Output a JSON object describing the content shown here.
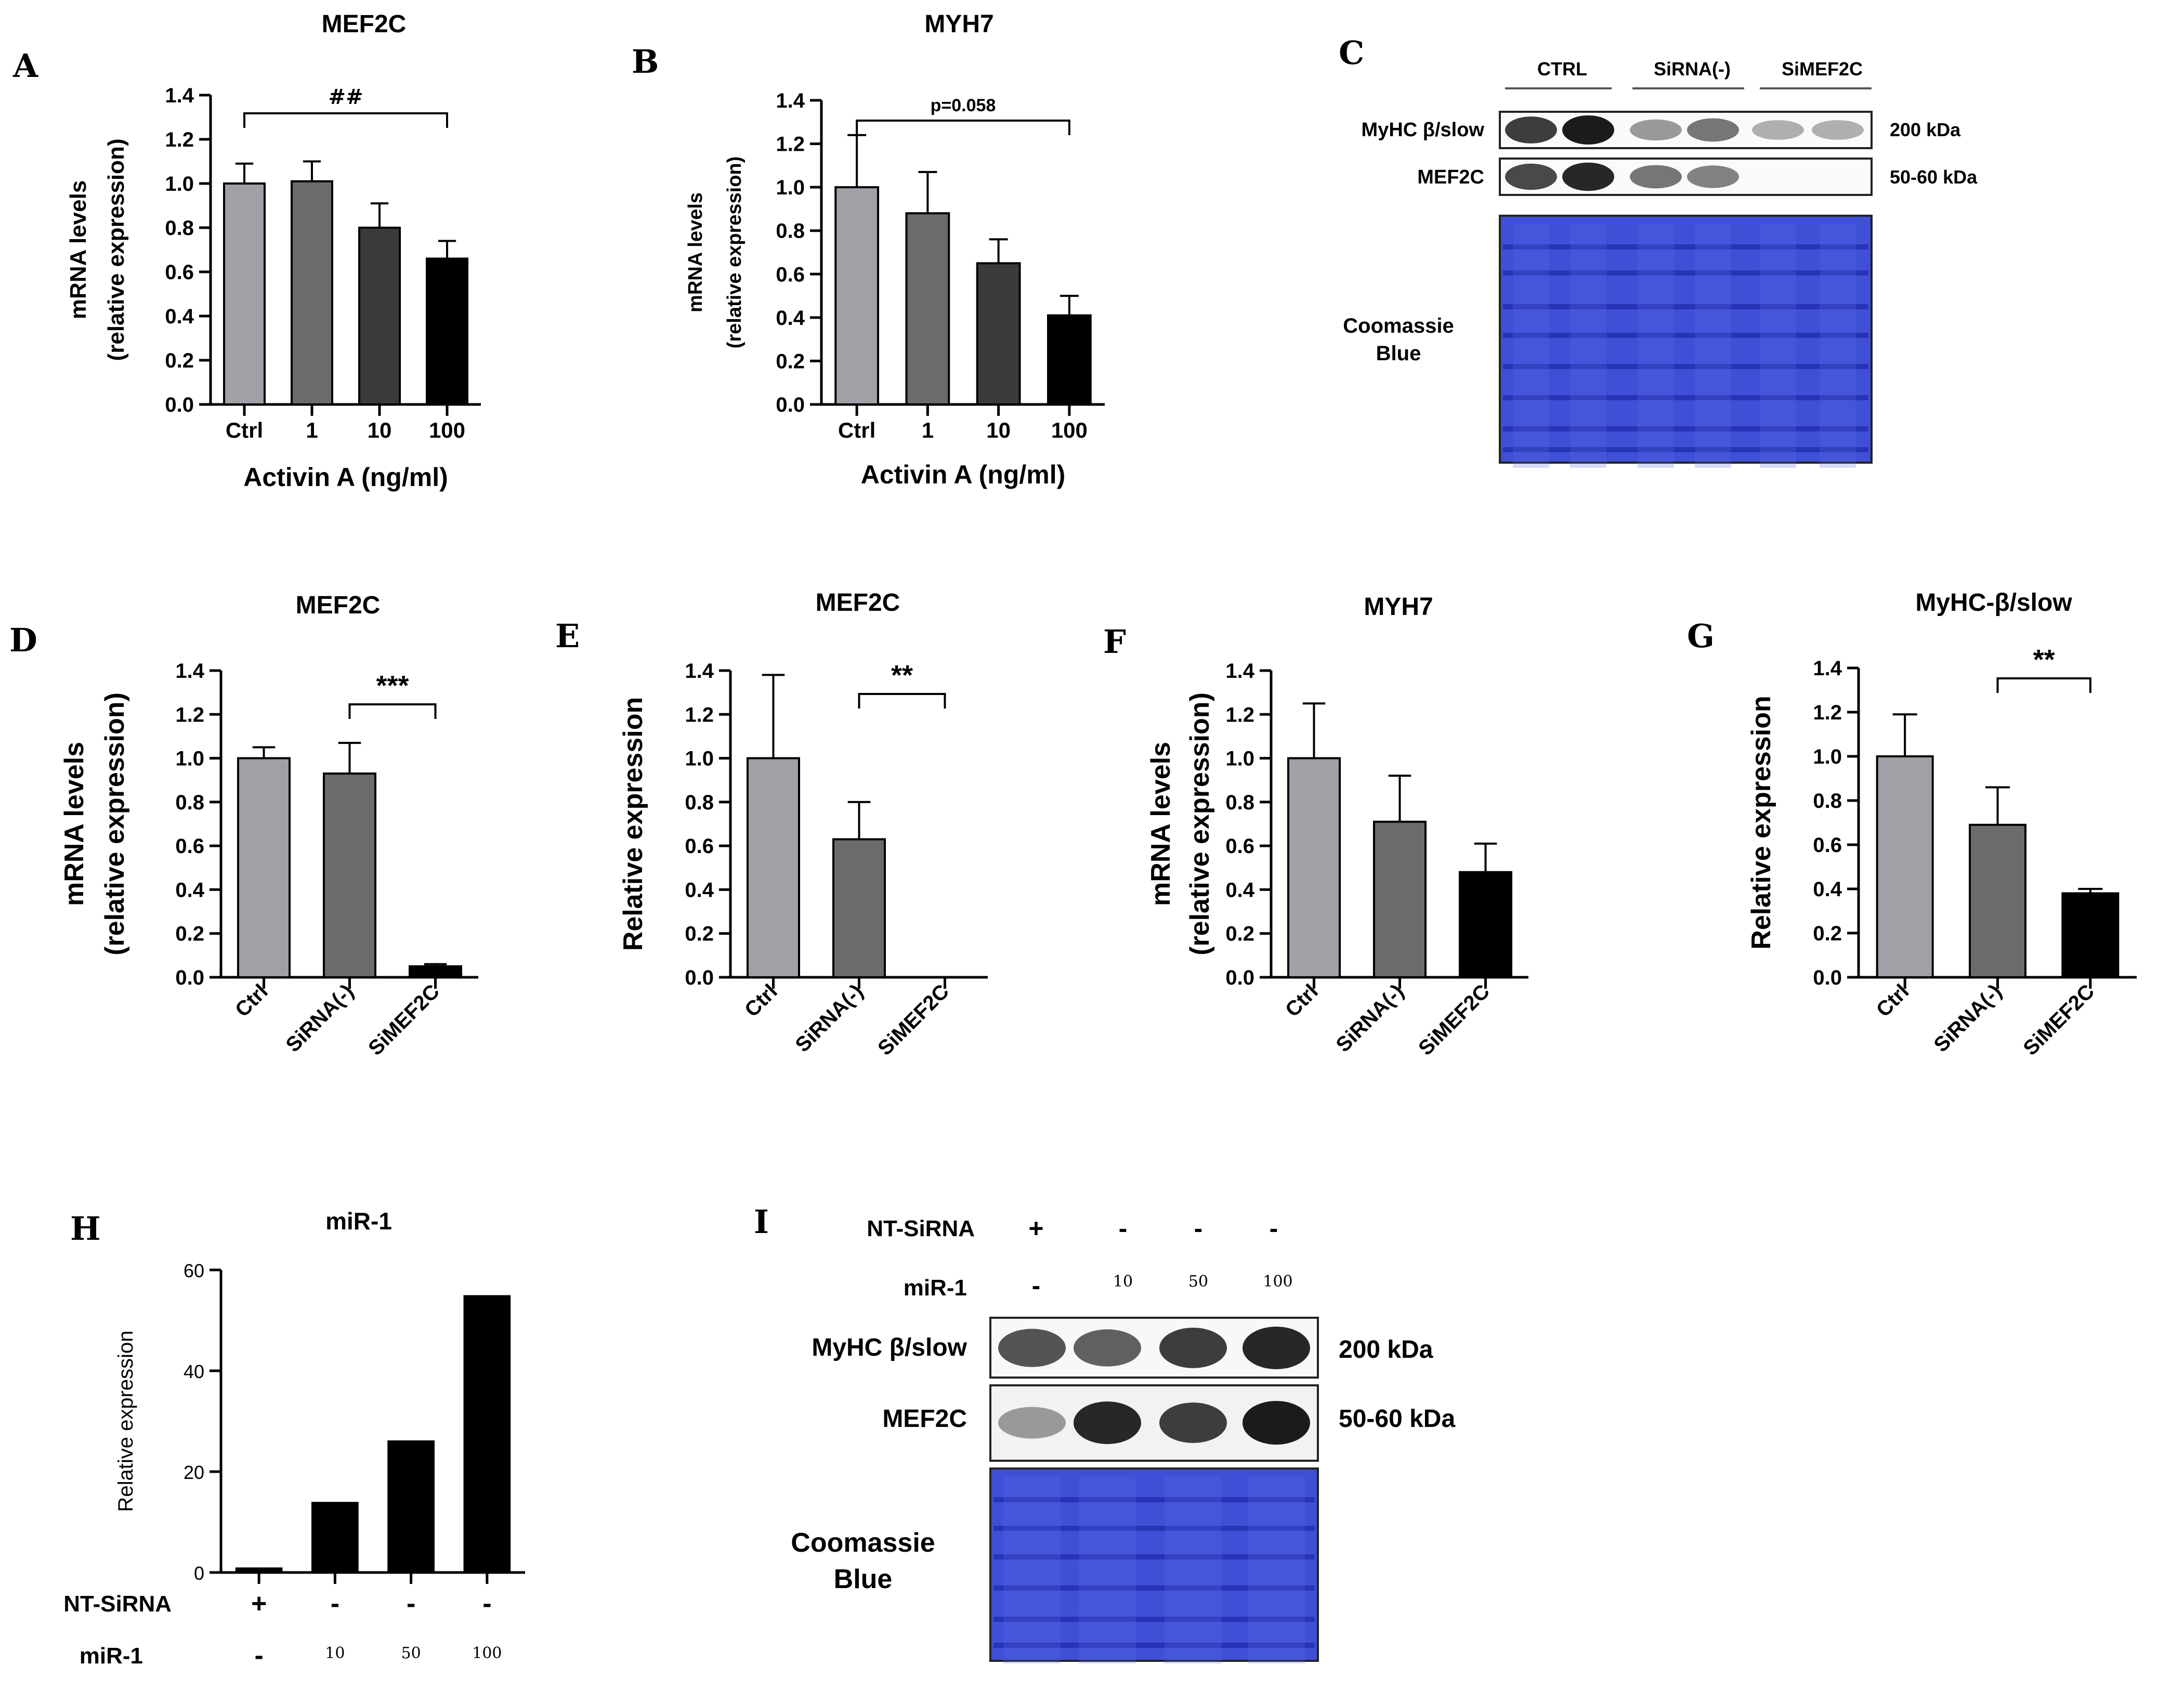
{
  "panel_letters": {
    "A": "A",
    "B": "B",
    "C": "C",
    "D": "D",
    "E": "E",
    "F": "F",
    "G": "G",
    "H": "H",
    "I": "I"
  },
  "colors": {
    "ctrl": "#9fa1a6",
    "dose1": "#6b6b6b",
    "dose10": "#3b3b3b",
    "dose100": "#000000",
    "coomassie": "#3f4fd6",
    "band": "#111111"
  },
  "chart_data": [
    {
      "id": "A",
      "type": "bar",
      "title": "MEF2C",
      "categories": [
        "Ctrl",
        "1",
        "10",
        "100"
      ],
      "values": [
        1.0,
        1.01,
        0.8,
        0.66
      ],
      "errors": [
        0.09,
        0.09,
        0.11,
        0.08
      ],
      "ylabel": [
        "mRNA levels",
        "(relative expression)"
      ],
      "xlabel": "Activin A (ng/ml)",
      "ylim": [
        0,
        1.4
      ],
      "yticks": [
        "0.0",
        "0.2",
        "0.4",
        "0.6",
        "0.8",
        "1.0",
        "1.2",
        "1.4"
      ],
      "significance": {
        "from": 0,
        "to": 3,
        "label": "##"
      }
    },
    {
      "id": "B",
      "type": "bar",
      "title": "MYH7",
      "categories": [
        "Ctrl",
        "1",
        "10",
        "100"
      ],
      "values": [
        1.0,
        0.88,
        0.65,
        0.41
      ],
      "errors": [
        0.24,
        0.19,
        0.11,
        0.09
      ],
      "ylabel": [
        "mRNA levels",
        "(relative expression)"
      ],
      "xlabel": "Activin A (ng/ml)",
      "ylim": [
        0,
        1.4
      ],
      "yticks": [
        "0.0",
        "0.2",
        "0.4",
        "0.6",
        "0.8",
        "1.0",
        "1.2",
        "1.4"
      ],
      "significance": {
        "from": 0,
        "to": 3,
        "label": "p=0.058"
      }
    },
    {
      "id": "D",
      "type": "bar",
      "title": "MEF2C",
      "categories": [
        "Ctrl",
        "SiRNA(-)",
        "SiMEF2C"
      ],
      "values": [
        1.0,
        0.93,
        0.05
      ],
      "errors": [
        0.05,
        0.14,
        0.01
      ],
      "ylabel": [
        "mRNA levels",
        "(relative expression)"
      ],
      "xlabel": "",
      "ylim": [
        0,
        1.4
      ],
      "yticks": [
        "0.0",
        "0.2",
        "0.4",
        "0.6",
        "0.8",
        "1.0",
        "1.2",
        "1.4"
      ],
      "significance": {
        "from": 1,
        "to": 2,
        "label": "***"
      }
    },
    {
      "id": "E",
      "type": "bar",
      "title": "MEF2C",
      "categories": [
        "Ctrl",
        "SiRNA(-)",
        "SiMEF2C"
      ],
      "values": [
        1.0,
        0.63,
        0.0
      ],
      "errors": [
        0.38,
        0.17,
        0.0
      ],
      "ylabel": [
        "Relative expression"
      ],
      "xlabel": "",
      "ylim": [
        0,
        1.4
      ],
      "yticks": [
        "0.0",
        "0.2",
        "0.4",
        "0.6",
        "0.8",
        "1.0",
        "1.2",
        "1.4"
      ],
      "significance": {
        "from": 1,
        "to": 2,
        "label": "**"
      }
    },
    {
      "id": "F",
      "type": "bar",
      "title": "MYH7",
      "categories": [
        "Ctrl",
        "SiRNA(-)",
        "SiMEF2C"
      ],
      "values": [
        1.0,
        0.71,
        0.48
      ],
      "errors": [
        0.25,
        0.21,
        0.13
      ],
      "ylabel": [
        "mRNA levels",
        "(relative expression)"
      ],
      "xlabel": "",
      "ylim": [
        0,
        1.4
      ],
      "yticks": [
        "0.0",
        "0.2",
        "0.4",
        "0.6",
        "0.8",
        "1.0",
        "1.2",
        "1.4"
      ],
      "significance": null
    },
    {
      "id": "G",
      "type": "bar",
      "title": "MyHC-β/slow",
      "categories": [
        "Ctrl",
        "SiRNA(-)",
        "SiMEF2C"
      ],
      "values": [
        1.0,
        0.69,
        0.38
      ],
      "errors": [
        0.19,
        0.17,
        0.02
      ],
      "ylabel": [
        "Relative expression"
      ],
      "xlabel": "",
      "ylim": [
        0,
        1.4
      ],
      "yticks": [
        "0.0",
        "0.2",
        "0.4",
        "0.6",
        "0.8",
        "1.0",
        "1.2",
        "1.4"
      ],
      "significance": {
        "from": 1,
        "to": 2,
        "label": "**"
      }
    },
    {
      "id": "H",
      "type": "bar",
      "title": "miR-1",
      "categories": [
        "NT-SiRNA +",
        "miR-1 10",
        "miR-1 50",
        "miR-1 100"
      ],
      "values": [
        1.0,
        14.0,
        26.2,
        55.0
      ],
      "errors": [
        0,
        0,
        0,
        0
      ],
      "ylabel": [
        "Relative expression"
      ],
      "xlabel": "",
      "ylim": [
        0,
        60
      ],
      "yticks": [
        "0",
        "20",
        "40",
        "60"
      ],
      "significance": null,
      "table_rows": [
        {
          "label": "NT-SiRNA",
          "cells": [
            "+",
            "-",
            "-",
            "-"
          ]
        },
        {
          "label": "miR-1",
          "cells": [
            "-",
            "10",
            "50",
            "100"
          ]
        }
      ]
    }
  ],
  "western_C": {
    "group_labels": [
      "CTRL",
      "SiRNA(-)",
      "SiMEF2C"
    ],
    "rows": [
      {
        "label": "MyHC β/slow",
        "size": "200 kDa",
        "intensities": [
          0.85,
          1.0,
          0.45,
          0.6,
          0.35,
          0.35
        ]
      },
      {
        "label": "MEF2C",
        "size": "50-60 kDa",
        "intensities": [
          0.8,
          0.95,
          0.6,
          0.55,
          0.0,
          0.0
        ]
      }
    ],
    "stain_label": [
      "Coomassie",
      "Blue"
    ]
  },
  "western_I": {
    "header_rows": [
      {
        "label": "NT-SiRNA",
        "cells": [
          "+",
          "-",
          "-",
          "-"
        ]
      },
      {
        "label": "miR-1",
        "cells": [
          "-",
          "10",
          "50",
          "100"
        ]
      }
    ],
    "rows": [
      {
        "label": "MyHC β/slow",
        "size": "200 kDa",
        "intensities": [
          0.75,
          0.7,
          0.85,
          0.95
        ]
      },
      {
        "label": "MEF2C",
        "size": "50-60 kDa",
        "intensities": [
          0.45,
          0.95,
          0.85,
          1.0
        ]
      }
    ],
    "stain_label": [
      "Coomassie",
      "Blue"
    ]
  }
}
